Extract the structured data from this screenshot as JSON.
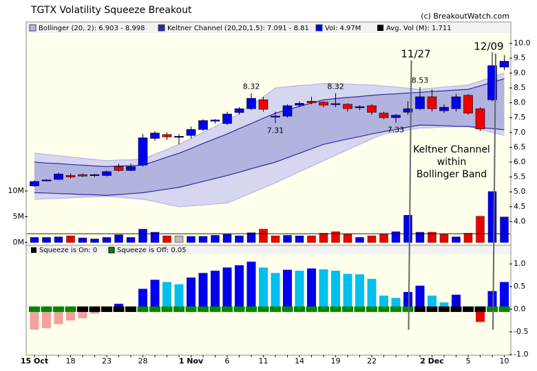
{
  "chart_data": {
    "type": "candlestick",
    "title": "TGTX Volatility Squeeze Breakout",
    "source": "(c) BreakoutWatch.com",
    "categories": [
      "15 Oct",
      null,
      null,
      "18",
      null,
      null,
      "23",
      null,
      null,
      "28",
      null,
      null,
      null,
      "1 Nov",
      null,
      null,
      "6",
      null,
      null,
      "11",
      null,
      null,
      "14",
      null,
      null,
      "19",
      null,
      null,
      "22",
      null,
      null,
      null,
      null,
      "2 Dec",
      null,
      null,
      "5",
      null,
      null,
      "10"
    ],
    "open": [
      5.2,
      5.38,
      5.42,
      5.55,
      5.58,
      5.55,
      5.55,
      5.85,
      5.72,
      5.9,
      6.8,
      6.93,
      6.85,
      6.9,
      7.1,
      7.38,
      7.3,
      7.67,
      7.8,
      8.1,
      7.55,
      7.55,
      7.92,
      8.05,
      8.02,
      7.95,
      7.95,
      7.83,
      7.9,
      7.65,
      7.5,
      7.68,
      7.8,
      8.2,
      7.73,
      7.8,
      8.25,
      7.8,
      8.1,
      9.2
    ],
    "high": [
      5.38,
      5.42,
      5.65,
      5.62,
      5.62,
      5.6,
      5.72,
      5.95,
      5.95,
      6.95,
      7.05,
      7.0,
      6.95,
      7.2,
      7.45,
      7.45,
      7.7,
      7.85,
      8.32,
      8.2,
      7.7,
      7.95,
      8.05,
      8.2,
      8.05,
      8.32,
      7.98,
      7.92,
      7.95,
      7.7,
      7.62,
      8.05,
      8.53,
      8.45,
      7.95,
      8.3,
      8.3,
      7.85,
      9.7,
      9.6
    ],
    "low": [
      5.17,
      5.35,
      5.4,
      5.45,
      5.5,
      5.5,
      5.52,
      5.68,
      5.7,
      5.85,
      6.72,
      6.75,
      6.6,
      6.8,
      7.05,
      7.3,
      7.25,
      7.6,
      7.75,
      7.7,
      7.31,
      7.5,
      7.85,
      7.95,
      7.85,
      7.85,
      7.7,
      7.75,
      7.6,
      7.45,
      7.33,
      7.6,
      7.75,
      7.7,
      7.65,
      7.7,
      7.6,
      7.05,
      8.05,
      9.1
    ],
    "close": [
      5.35,
      5.4,
      5.6,
      5.5,
      5.53,
      5.58,
      5.68,
      5.72,
      5.85,
      6.82,
      6.98,
      6.85,
      6.87,
      7.1,
      7.4,
      7.42,
      7.62,
      7.8,
      8.15,
      7.78,
      7.55,
      7.9,
      7.98,
      8.0,
      7.92,
      7.97,
      7.8,
      7.87,
      7.68,
      7.5,
      7.58,
      7.8,
      8.2,
      7.8,
      7.85,
      8.2,
      7.65,
      7.12,
      9.25,
      9.4
    ],
    "up_color": "#0000ee",
    "down_color": "#ee0000",
    "bollinger_upper": [
      6.3,
      6.26,
      6.22,
      6.17,
      6.13,
      6.09,
      6.05,
      6.07,
      6.08,
      6.1,
      6.27,
      6.43,
      6.6,
      6.8,
      7.0,
      7.2,
      7.4,
      7.65,
      7.9,
      8.2,
      8.5,
      8.54,
      8.58,
      8.61,
      8.65,
      8.64,
      8.63,
      8.61,
      8.6,
      8.56,
      8.53,
      8.49,
      8.45,
      8.49,
      8.53,
      8.56,
      8.6,
      8.73,
      8.87,
      8.998
    ],
    "bollinger_lower": [
      4.75,
      4.77,
      4.78,
      4.8,
      4.82,
      4.83,
      4.85,
      4.82,
      4.78,
      4.75,
      4.67,
      4.58,
      4.5,
      4.53,
      4.56,
      4.59,
      4.62,
      4.79,
      4.96,
      5.13,
      5.3,
      5.49,
      5.68,
      5.86,
      6.05,
      6.23,
      6.42,
      6.6,
      6.78,
      6.95,
      7.02,
      7.08,
      7.15,
      7.16,
      7.18,
      7.19,
      7.2,
      7.1,
      7.0,
      6.903
    ],
    "keltner_upper": [
      6.0,
      5.97,
      5.95,
      5.92,
      5.9,
      5.87,
      5.85,
      5.87,
      5.88,
      5.9,
      6.03,
      6.17,
      6.3,
      6.46,
      6.63,
      6.79,
      6.95,
      7.13,
      7.3,
      7.48,
      7.65,
      7.76,
      7.88,
      7.99,
      8.1,
      8.14,
      8.18,
      8.21,
      8.25,
      8.28,
      8.3,
      8.33,
      8.35,
      8.38,
      8.4,
      8.43,
      8.45,
      8.57,
      8.69,
      8.81
    ],
    "keltner_lower": [
      4.97,
      4.96,
      4.94,
      4.93,
      4.91,
      4.9,
      4.88,
      4.91,
      4.94,
      4.97,
      5.03,
      5.09,
      5.15,
      5.25,
      5.35,
      5.45,
      5.55,
      5.66,
      5.78,
      5.89,
      6.0,
      6.15,
      6.3,
      6.45,
      6.6,
      6.69,
      6.78,
      6.86,
      6.95,
      7.03,
      7.1,
      7.18,
      7.25,
      7.24,
      7.23,
      7.21,
      7.2,
      7.16,
      7.13,
      7.091
    ],
    "bollinger_color": "#b4b4f0",
    "keltner_color": "#2a2aa8",
    "volume": [
      1.0,
      1.0,
      1.1,
      1.3,
      0.9,
      0.7,
      1.0,
      1.5,
      1.0,
      2.6,
      2.0,
      1.3,
      1.3,
      1.2,
      1.2,
      1.4,
      1.6,
      1.3,
      1.9,
      2.6,
      1.3,
      1.4,
      1.3,
      1.3,
      1.8,
      2.1,
      1.6,
      1.0,
      1.3,
      1.6,
      2.1,
      5.3,
      2.0,
      2.0,
      1.6,
      1.1,
      1.8,
      5.1,
      9.9,
      4.97
    ],
    "volume_colors": [
      "#0000ee",
      "#0000ee",
      "#0000ee",
      "#ee0000",
      "#0000ee",
      "#0000ee",
      "#0000ee",
      "#0000ee",
      "#0000ee",
      "#0000ee",
      "#0000ee",
      "#ee0000",
      "#bbbbbb",
      "#0000ee",
      "#0000ee",
      "#0000ee",
      "#0000ee",
      "#0000ee",
      "#0000ee",
      "#ee0000",
      "#ee0000",
      "#0000ee",
      "#0000ee",
      "#ee0000",
      "#ee0000",
      "#ee0000",
      "#ee0000",
      "#0000ee",
      "#ee0000",
      "#ee0000",
      "#0000ee",
      "#0000ee",
      "#0000ee",
      "#ee0000",
      "#ee0000",
      "#0000ee",
      "#ee0000",
      "#ee0000",
      "#0000ee",
      "#0000ee"
    ],
    "avg_volume": 1.711,
    "squeeze": [
      -0.45,
      -0.42,
      -0.33,
      -0.25,
      -0.2,
      -0.1,
      -0.05,
      0.12,
      0.05,
      0.45,
      0.65,
      0.6,
      0.55,
      0.7,
      0.8,
      0.85,
      0.92,
      0.97,
      1.05,
      0.92,
      0.8,
      0.87,
      0.85,
      0.9,
      0.88,
      0.85,
      0.78,
      0.77,
      0.67,
      0.3,
      0.25,
      0.38,
      0.52,
      0.3,
      0.15,
      0.32,
      0.05,
      -0.28,
      0.4,
      0.6
    ],
    "squeeze_colors": [
      "#f4a0a0",
      "#f4a0a0",
      "#f4a0a0",
      "#f4a0a0",
      "#f4a0a0",
      "#f4a0a0",
      "#f4a0a0",
      "#0000ee",
      "#0000ee",
      "#0000ee",
      "#0000ee",
      "#00c0f0",
      "#00c0f0",
      "#0000ee",
      "#0000ee",
      "#0000ee",
      "#0000ee",
      "#0000ee",
      "#0000ee",
      "#00c0f0",
      "#00c0f0",
      "#0000ee",
      "#00c0f0",
      "#0000ee",
      "#00c0f0",
      "#00c0f0",
      "#00c0f0",
      "#00c0f0",
      "#00c0f0",
      "#00c0f0",
      "#00c0f0",
      "#0000ee",
      "#0000ee",
      "#00c0f0",
      "#00c0f0",
      "#0000ee",
      "#00c0f0",
      "#ee0000",
      "#0000ee",
      "#0000ee"
    ],
    "squeeze_on": [
      false,
      false,
      false,
      false,
      true,
      true,
      true,
      true,
      true,
      false,
      false,
      false,
      false,
      false,
      false,
      false,
      false,
      false,
      false,
      false,
      false,
      false,
      false,
      false,
      false,
      false,
      false,
      false,
      false,
      false,
      false,
      false,
      true,
      true,
      true,
      true,
      true,
      true,
      false,
      false
    ],
    "squeeze_on_color": "#000000",
    "squeeze_off_color": "#008800",
    "legend": {
      "bollinger": "Bollinger (20, 2): 6.903 - 8.998",
      "keltner": "Keltner Channel (20,20,1.5): 7.091 - 8.81",
      "vol": "Vol: 4.97M",
      "avg": "Avg. Vol (M): 1.711",
      "squeeze_on": "Squeeze is On: 0",
      "squeeze_off": "Squeeze is Off: 0.05"
    },
    "annotations": [
      "11/27",
      "12/09",
      "Keltner Channel",
      "within",
      "Bollinger Band"
    ],
    "ylim": [
      3.2,
      10.35
    ],
    "yticks": [
      {
        "value": 4,
        "label": "4.0"
      },
      {
        "value": 4.5,
        "label": "4.5"
      },
      {
        "value": 5,
        "label": "5.0"
      },
      {
        "value": 5.5,
        "label": "5.5"
      },
      {
        "value": 6,
        "label": "6.0"
      },
      {
        "value": 6.5,
        "label": "6.5"
      },
      {
        "value": 7,
        "label": "7.0"
      },
      {
        "value": 7.5,
        "label": "7.5"
      },
      {
        "value": 8,
        "label": "8.0"
      },
      {
        "value": 8.5,
        "label": "8.5"
      },
      {
        "value": 9,
        "label": "9.0"
      },
      {
        "value": 9.5,
        "label": "9.5"
      },
      {
        "value": 10,
        "label": "10.0"
      }
    ],
    "volume_ylim": [
      0,
      12.8
    ],
    "volume_ticks": [
      {
        "value": 0,
        "label": "0M"
      },
      {
        "value": 5,
        "label": "5M"
      },
      {
        "value": 10,
        "label": "10M"
      }
    ],
    "squeeze_ylim": [
      -1.015,
      1.29
    ],
    "squeeze_ticks": [
      {
        "value": 1,
        "label": "1.0"
      },
      {
        "value": 0.5,
        "label": "0.5"
      },
      {
        "value": 0,
        "label": "0.0"
      },
      {
        "value": -0.5,
        "label": "-0.5"
      },
      {
        "value": -1,
        "label": "-1.0"
      }
    ]
  }
}
